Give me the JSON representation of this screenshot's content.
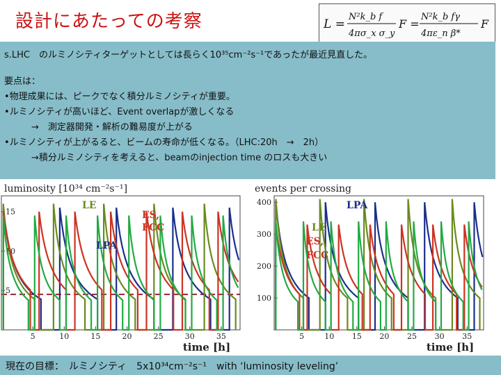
{
  "slide": {
    "title": "設計にあたっての考察",
    "formula": {
      "lhs": "L =",
      "frac1_num": "N²k_b f",
      "frac1_den": "4πσ_x σ_y",
      "mid": "F =",
      "frac2_num": "N²k_b fγ",
      "frac2_den": "4πε_n β*",
      "rhs": "F"
    },
    "notes": [
      "s.LHC　のルミノシティターゲットとしては長らく10³⁵cm⁻²s⁻¹であったが最近見直した。",
      "",
      "要点は：",
      "•物理成果には、ピークでなく積分ルミノシティが重要。",
      "•ルミノシティが高いほど、Event overlapが激しくなる",
      "　　　→　測定器開発・解析の難易度が上がる",
      "•ルミノシティが上がるると、ビームの寿命が低くなる。（LHC:20h　→　2h）",
      "　　　→積分ルミノシティを考えると、beamのinjection time のロスも大きい"
    ],
    "footer": "現在の目標：　ルミノシティ　5x10³⁴cm⁻²s⁻¹　with ‘luminosity leveling’"
  },
  "colors": {
    "title": "#cc1111",
    "note_bg": "#87bdc9",
    "series_le": "#6a8a20",
    "series_lpa": "#1b2f8a",
    "series_es": "#cc3322",
    "series_green": "#22aa44",
    "dashed": "#992233"
  },
  "chart_data": [
    {
      "type": "line",
      "title": "luminosity [10³⁴ cm⁻²s⁻¹]",
      "xlabel": "time [h]",
      "xlim": [
        0,
        38
      ],
      "ylim": [
        0,
        17
      ],
      "xticks": [
        "5",
        "10",
        "15",
        "20",
        "25",
        "30",
        "35"
      ],
      "yticks": [
        "5",
        "10",
        "15"
      ],
      "annotations": [
        "LE",
        "ES,",
        "FCC",
        "LPA"
      ],
      "dashed_level": 4.5,
      "series": [
        {
          "name": "LPA",
          "color": "#1b2f8a",
          "peak": 15.5,
          "decay_h": 2.0,
          "cycle_h": 9.0,
          "turnaround_h": 3.0
        },
        {
          "name": "LE",
          "color": "#6a8a20",
          "peak": 16.0,
          "decay_h": 1.6,
          "cycle_h": 8.0,
          "turnaround_h": 3.0
        },
        {
          "name": "ES, FCC",
          "color": "#cc3322",
          "peak": 15.0,
          "decay_h": 2.2,
          "cycle_h": 5.7,
          "turnaround_h": 1.4
        },
        {
          "name": "green",
          "color": "#22aa44",
          "peak": 14.5,
          "decay_h": 1.4,
          "cycle_h": 5.0,
          "turnaround_h": 1.0
        }
      ]
    },
    {
      "type": "line",
      "title": "events per crossing",
      "xlabel": "time [h]",
      "xlim": [
        0,
        38
      ],
      "ylim": [
        0,
        420
      ],
      "xticks": [
        "5",
        "10",
        "15",
        "20",
        "25",
        "30",
        "35"
      ],
      "yticks": [
        "100",
        "200",
        "300",
        "400"
      ],
      "annotations": [
        "LPA",
        "LE",
        "ES,",
        "FCC"
      ],
      "series": [
        {
          "name": "LPA",
          "color": "#1b2f8a",
          "peak": 400,
          "decay_h": 2.0,
          "cycle_h": 9.0,
          "turnaround_h": 3.0
        },
        {
          "name": "LE",
          "color": "#6a8a20",
          "peak": 410,
          "decay_h": 1.6,
          "cycle_h": 8.0,
          "turnaround_h": 3.0
        },
        {
          "name": "ES, FCC",
          "color": "#cc3322",
          "peak": 330,
          "decay_h": 2.2,
          "cycle_h": 5.7,
          "turnaround_h": 1.4
        },
        {
          "name": "green",
          "color": "#22aa44",
          "peak": 340,
          "decay_h": 1.4,
          "cycle_h": 5.0,
          "turnaround_h": 1.0
        }
      ]
    }
  ]
}
